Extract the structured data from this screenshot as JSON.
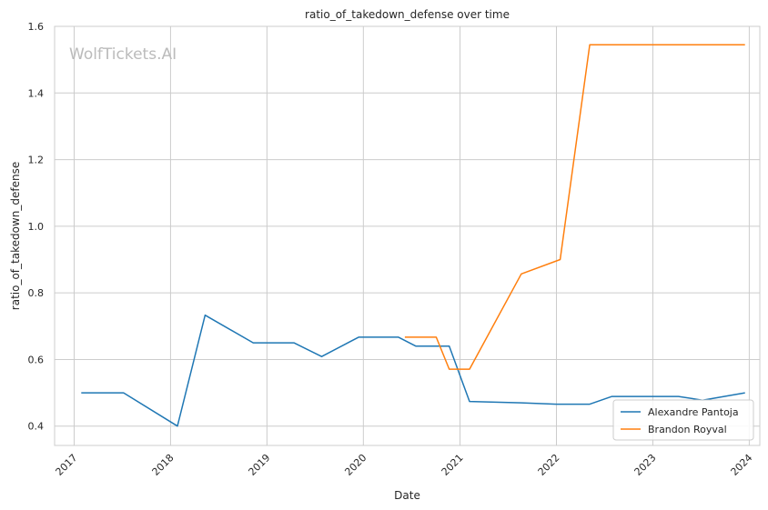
{
  "chart_data": {
    "type": "line",
    "title": "ratio_of_takedown_defense over time",
    "xlabel": "Date",
    "ylabel": "ratio_of_takedown_defense",
    "watermark": "WolfTickets.AI",
    "xlim": [
      "2016-10-19",
      "2024-02-10"
    ],
    "ylim": [
      0.342,
      1.6
    ],
    "x_ticks": [
      "2017-01-01",
      "2018-01-01",
      "2019-01-01",
      "2020-01-01",
      "2021-01-01",
      "2022-01-01",
      "2023-01-01",
      "2024-01-01"
    ],
    "x_tick_labels": [
      "2017",
      "2018",
      "2019",
      "2020",
      "2021",
      "2022",
      "2023",
      "2024"
    ],
    "y_ticks": [
      0.4,
      0.6,
      0.8,
      1.0,
      1.2,
      1.4,
      1.6
    ],
    "y_tick_labels": [
      "0.4",
      "0.6",
      "0.8",
      "1.0",
      "1.2",
      "1.4",
      "1.6"
    ],
    "grid": true,
    "legend_position": "bottom-right",
    "series": [
      {
        "name": "Alexandre Pantoja",
        "color": "#1f77b4",
        "points": [
          {
            "x": "2017-01-28",
            "y": 0.5
          },
          {
            "x": "2017-07-07",
            "y": 0.5
          },
          {
            "x": "2018-01-27",
            "y": 0.4
          },
          {
            "x": "2018-05-12",
            "y": 0.733
          },
          {
            "x": "2018-11-10",
            "y": 0.65
          },
          {
            "x": "2019-04-13",
            "y": 0.65
          },
          {
            "x": "2019-07-27",
            "y": 0.609
          },
          {
            "x": "2019-12-14",
            "y": 0.667
          },
          {
            "x": "2020-05-13",
            "y": 0.667
          },
          {
            "x": "2020-07-18",
            "y": 0.64
          },
          {
            "x": "2020-11-21",
            "y": 0.64
          },
          {
            "x": "2021-02-06",
            "y": 0.474
          },
          {
            "x": "2021-08-21",
            "y": 0.47
          },
          {
            "x": "2022-01-01",
            "y": 0.466
          },
          {
            "x": "2022-05-07",
            "y": 0.466
          },
          {
            "x": "2022-07-30",
            "y": 0.489
          },
          {
            "x": "2023-04-08",
            "y": 0.489
          },
          {
            "x": "2023-07-08",
            "y": 0.478
          },
          {
            "x": "2023-12-16",
            "y": 0.5
          }
        ]
      },
      {
        "name": "Brandon Royval",
        "color": "#ff7f0e",
        "points": [
          {
            "x": "2020-06-06",
            "y": 0.667
          },
          {
            "x": "2020-10-03",
            "y": 0.667
          },
          {
            "x": "2020-11-21",
            "y": 0.571
          },
          {
            "x": "2021-02-06",
            "y": 0.571
          },
          {
            "x": "2021-08-21",
            "y": 0.857
          },
          {
            "x": "2022-01-15",
            "y": 0.9
          },
          {
            "x": "2022-05-07",
            "y": 1.545
          },
          {
            "x": "2023-12-16",
            "y": 1.545
          }
        ]
      }
    ]
  }
}
